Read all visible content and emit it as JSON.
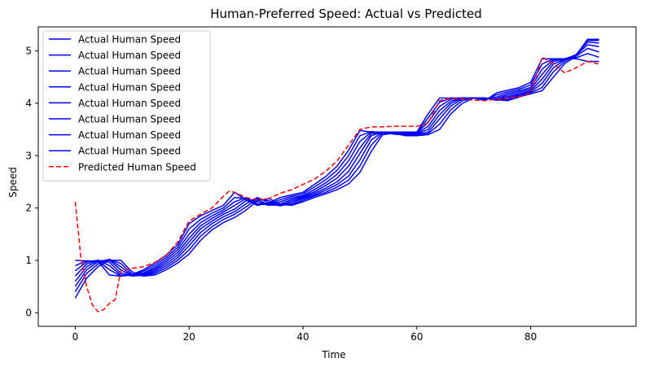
{
  "chart_data": {
    "type": "line",
    "title": "Human-Preferred Speed: Actual vs Predicted",
    "xlabel": "Time",
    "ylabel": "Speed",
    "xlim": [
      -6.5,
      98.5
    ],
    "ylim": [
      -0.26,
      5.46
    ],
    "xticks": [
      0,
      20,
      40,
      60,
      80
    ],
    "yticks": [
      0,
      1,
      2,
      3,
      4,
      5
    ],
    "grid": false,
    "legend_position": "upper left",
    "series": [
      {
        "name": "Actual Human Speed",
        "color": "#0000ff",
        "style": "solid",
        "x": [
          0,
          2,
          4,
          6,
          8,
          10,
          12,
          14,
          16,
          18,
          20,
          22,
          24,
          26,
          28,
          30,
          32,
          34,
          36,
          38,
          40,
          42,
          44,
          46,
          48,
          50,
          52,
          54,
          56,
          58,
          60,
          62,
          64,
          66,
          68,
          70,
          72,
          74,
          76,
          78,
          80,
          82,
          84,
          86,
          88,
          90,
          92
        ],
        "values": [
          1.0,
          0.99,
          0.98,
          0.72,
          0.7,
          0.73,
          0.82,
          0.95,
          1.1,
          1.3,
          1.7,
          1.85,
          1.95,
          2.05,
          2.3,
          2.15,
          2.05,
          2.1,
          2.2,
          2.25,
          2.3,
          2.45,
          2.6,
          2.8,
          3.1,
          3.48,
          3.45,
          3.45,
          3.45,
          3.45,
          3.45,
          3.8,
          4.1,
          4.1,
          4.1,
          4.1,
          4.05,
          4.2,
          4.25,
          4.3,
          4.4,
          4.85,
          4.85,
          4.85,
          4.85,
          4.8,
          4.8
        ]
      },
      {
        "name": "Actual Human Speed",
        "color": "#0000ff",
        "style": "solid",
        "x": [
          0,
          2,
          4,
          6,
          8,
          10,
          12,
          14,
          16,
          18,
          20,
          22,
          24,
          26,
          28,
          30,
          32,
          34,
          36,
          38,
          40,
          42,
          44,
          46,
          48,
          50,
          52,
          54,
          56,
          58,
          60,
          62,
          64,
          66,
          68,
          70,
          72,
          74,
          76,
          78,
          80,
          82,
          84,
          86,
          88,
          90,
          92
        ],
        "values": [
          0.9,
          0.99,
          0.99,
          0.82,
          0.7,
          0.72,
          0.79,
          0.91,
          1.06,
          1.25,
          1.6,
          1.78,
          1.9,
          2.0,
          2.2,
          2.18,
          2.06,
          2.08,
          2.16,
          2.22,
          2.27,
          2.4,
          2.54,
          2.72,
          3.0,
          3.38,
          3.46,
          3.44,
          3.44,
          3.44,
          3.44,
          3.72,
          4.02,
          4.1,
          4.1,
          4.1,
          4.07,
          4.16,
          4.22,
          4.27,
          4.35,
          4.75,
          4.85,
          4.85,
          4.87,
          4.95,
          4.88
        ]
      },
      {
        "name": "Actual Human Speed",
        "color": "#0000ff",
        "style": "solid",
        "x": [
          0,
          2,
          4,
          6,
          8,
          10,
          12,
          14,
          16,
          18,
          20,
          22,
          24,
          26,
          28,
          30,
          32,
          34,
          36,
          38,
          40,
          42,
          44,
          46,
          48,
          50,
          52,
          54,
          56,
          58,
          60,
          62,
          64,
          66,
          68,
          70,
          72,
          74,
          76,
          78,
          80,
          82,
          84,
          86,
          88,
          90,
          92
        ],
        "values": [
          0.8,
          0.97,
          1.0,
          0.9,
          0.72,
          0.71,
          0.76,
          0.87,
          1.02,
          1.2,
          1.5,
          1.72,
          1.85,
          1.96,
          2.12,
          2.2,
          2.08,
          2.06,
          2.12,
          2.19,
          2.24,
          2.35,
          2.48,
          2.64,
          2.9,
          3.27,
          3.45,
          3.44,
          3.43,
          3.43,
          3.43,
          3.64,
          3.94,
          4.08,
          4.1,
          4.1,
          4.08,
          4.12,
          4.19,
          4.24,
          4.3,
          4.65,
          4.83,
          4.85,
          4.9,
          5.05,
          4.98
        ]
      },
      {
        "name": "Actual Human Speed",
        "color": "#0000ff",
        "style": "solid",
        "x": [
          0,
          2,
          4,
          6,
          8,
          10,
          12,
          14,
          16,
          18,
          20,
          22,
          24,
          26,
          28,
          30,
          32,
          34,
          36,
          38,
          40,
          42,
          44,
          46,
          48,
          50,
          52,
          54,
          56,
          58,
          60,
          62,
          64,
          66,
          68,
          70,
          72,
          74,
          76,
          78,
          80,
          82,
          84,
          86,
          88,
          90,
          92
        ],
        "values": [
          0.7,
          0.93,
          1.0,
          0.96,
          0.76,
          0.7,
          0.74,
          0.84,
          0.98,
          1.15,
          1.42,
          1.66,
          1.8,
          1.92,
          2.05,
          2.18,
          2.12,
          2.05,
          2.08,
          2.16,
          2.22,
          2.31,
          2.43,
          2.57,
          2.8,
          3.15,
          3.42,
          3.44,
          3.42,
          3.42,
          3.42,
          3.56,
          3.86,
          4.04,
          4.1,
          4.1,
          4.09,
          4.09,
          4.16,
          4.21,
          4.27,
          4.55,
          4.8,
          4.85,
          4.92,
          5.12,
          5.08
        ]
      },
      {
        "name": "Actual Human Speed",
        "color": "#0000ff",
        "style": "solid",
        "x": [
          0,
          2,
          4,
          6,
          8,
          10,
          12,
          14,
          16,
          18,
          20,
          22,
          24,
          26,
          28,
          30,
          32,
          34,
          36,
          38,
          40,
          42,
          44,
          46,
          48,
          50,
          52,
          54,
          56,
          58,
          60,
          62,
          64,
          66,
          68,
          70,
          72,
          74,
          76,
          78,
          80,
          82,
          84,
          86,
          88,
          90,
          92
        ],
        "values": [
          0.6,
          0.88,
          0.99,
          1.0,
          0.82,
          0.7,
          0.72,
          0.81,
          0.94,
          1.1,
          1.35,
          1.6,
          1.75,
          1.88,
          1.98,
          2.14,
          2.16,
          2.06,
          2.05,
          2.13,
          2.2,
          2.28,
          2.38,
          2.5,
          2.7,
          3.04,
          3.38,
          3.45,
          3.41,
          3.41,
          3.41,
          3.5,
          3.78,
          4.0,
          4.1,
          4.1,
          4.1,
          4.07,
          4.13,
          4.18,
          4.24,
          4.46,
          4.75,
          4.84,
          4.93,
          5.17,
          5.15
        ]
      },
      {
        "name": "Actual Human Speed",
        "color": "#0000ff",
        "style": "solid",
        "x": [
          0,
          2,
          4,
          6,
          8,
          10,
          12,
          14,
          16,
          18,
          20,
          22,
          24,
          26,
          28,
          30,
          32,
          34,
          36,
          38,
          40,
          42,
          44,
          46,
          48,
          50,
          52,
          54,
          56,
          58,
          60,
          62,
          64,
          66,
          68,
          70,
          72,
          74,
          76,
          78,
          80,
          82,
          84,
          86,
          88,
          90,
          92
        ],
        "values": [
          0.5,
          0.82,
          0.97,
          1.02,
          0.88,
          0.71,
          0.71,
          0.78,
          0.9,
          1.05,
          1.28,
          1.53,
          1.7,
          1.83,
          1.93,
          2.08,
          2.2,
          2.1,
          2.04,
          2.1,
          2.18,
          2.25,
          2.34,
          2.45,
          2.61,
          2.92,
          3.3,
          3.45,
          3.41,
          3.4,
          3.4,
          3.45,
          3.7,
          3.95,
          4.08,
          4.1,
          4.1,
          4.06,
          4.1,
          4.16,
          4.22,
          4.38,
          4.68,
          4.83,
          4.93,
          5.2,
          5.2
        ]
      },
      {
        "name": "Actual Human Speed",
        "color": "#0000ff",
        "style": "solid",
        "x": [
          0,
          2,
          4,
          6,
          8,
          10,
          12,
          14,
          16,
          18,
          20,
          22,
          24,
          26,
          28,
          30,
          32,
          34,
          36,
          38,
          40,
          42,
          44,
          46,
          48,
          50,
          52,
          54,
          56,
          58,
          60,
          62,
          64,
          66,
          68,
          70,
          72,
          74,
          76,
          78,
          80,
          82,
          84,
          86,
          88,
          90,
          92
        ],
        "values": [
          0.4,
          0.75,
          0.93,
          1.02,
          0.94,
          0.74,
          0.7,
          0.75,
          0.86,
          1.0,
          1.2,
          1.46,
          1.64,
          1.78,
          1.88,
          2.02,
          2.18,
          2.14,
          2.05,
          2.07,
          2.15,
          2.23,
          2.3,
          2.4,
          2.53,
          2.8,
          3.2,
          3.43,
          3.42,
          3.39,
          3.39,
          3.42,
          3.6,
          3.88,
          4.05,
          4.1,
          4.1,
          4.06,
          4.07,
          4.14,
          4.2,
          4.3,
          4.6,
          4.8,
          4.92,
          5.22,
          5.22
        ]
      },
      {
        "name": "Actual Human Speed",
        "color": "#0000ff",
        "style": "solid",
        "x": [
          0,
          2,
          4,
          6,
          8,
          10,
          12,
          14,
          16,
          18,
          20,
          22,
          24,
          26,
          28,
          30,
          32,
          34,
          36,
          38,
          40,
          42,
          44,
          46,
          48,
          50,
          52,
          54,
          56,
          58,
          60,
          62,
          64,
          66,
          68,
          70,
          72,
          74,
          76,
          78,
          80,
          82,
          84,
          86,
          88,
          90,
          92
        ],
        "values": [
          0.28,
          0.66,
          0.88,
          1.0,
          1.0,
          0.78,
          0.7,
          0.72,
          0.82,
          0.95,
          1.12,
          1.38,
          1.58,
          1.72,
          1.82,
          1.96,
          2.14,
          2.18,
          2.08,
          2.05,
          2.12,
          2.2,
          2.27,
          2.35,
          2.46,
          2.68,
          3.08,
          3.4,
          3.43,
          3.38,
          3.38,
          3.4,
          3.5,
          3.8,
          4.0,
          4.1,
          4.1,
          4.07,
          4.05,
          4.12,
          4.18,
          4.24,
          4.5,
          4.76,
          4.9,
          5.22,
          5.22
        ]
      },
      {
        "name": "Predicted Human Speed",
        "color": "#ff0000",
        "style": "dashed",
        "x": [
          0,
          1,
          2,
          3,
          4,
          5,
          6,
          7,
          8,
          10,
          12,
          14,
          16,
          18,
          20,
          22,
          24,
          26,
          27,
          28,
          30,
          32,
          34,
          36,
          38,
          40,
          42,
          44,
          46,
          48,
          50,
          52,
          54,
          56,
          58,
          60,
          62,
          64,
          66,
          68,
          70,
          72,
          74,
          76,
          78,
          80,
          82,
          84,
          86,
          88,
          90,
          92
        ],
        "values": [
          2.12,
          1.05,
          0.5,
          0.15,
          0.02,
          0.06,
          0.18,
          0.25,
          0.8,
          0.85,
          0.88,
          0.96,
          1.1,
          1.35,
          1.75,
          1.88,
          2.0,
          2.22,
          2.32,
          2.3,
          2.2,
          2.15,
          2.18,
          2.28,
          2.35,
          2.45,
          2.55,
          2.7,
          2.9,
          3.2,
          3.5,
          3.55,
          3.55,
          3.56,
          3.56,
          3.56,
          3.62,
          4.05,
          4.1,
          4.08,
          4.06,
          4.05,
          4.08,
          4.1,
          4.12,
          4.2,
          4.88,
          4.75,
          4.58,
          4.68,
          4.8,
          4.75
        ]
      }
    ]
  }
}
